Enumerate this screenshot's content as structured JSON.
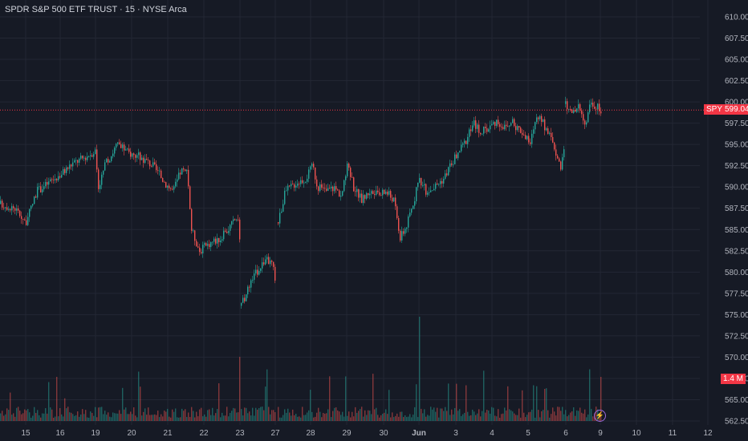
{
  "header": {
    "title": "SPDR S&P 500 ETF TRUST · 15 · NYSE Arca"
  },
  "price_axis": {
    "labels": [
      "610.00",
      "607.50",
      "605.00",
      "602.50",
      "600.00",
      "597.50",
      "595.00",
      "592.50",
      "590.00",
      "587.50",
      "585.00",
      "582.50",
      "580.00",
      "577.50",
      "575.00",
      "572.50",
      "570.00",
      "567.50",
      "565.00",
      "562.50"
    ]
  },
  "badges": {
    "symbol": "SPY",
    "last_price": "599.04",
    "volume": "1.4 M"
  },
  "time_axis": {
    "labels": [
      "15",
      "16",
      "19",
      "20",
      "21",
      "22",
      "23",
      "27",
      "28",
      "29",
      "30",
      "Jun",
      "3",
      "4",
      "5",
      "6",
      "9",
      "10",
      "11",
      "12"
    ]
  },
  "colors": {
    "up": "#26a69a",
    "down": "#ef5350",
    "background": "#161a25",
    "grid": "#232734",
    "accent": "#f23645"
  },
  "icons": {
    "replay": "lightning-bolt-icon"
  },
  "chart_data": {
    "type": "candlestick",
    "interval": "15 min",
    "last_price": 599.04,
    "ylim": [
      562.5,
      610
    ],
    "x_ticks": [
      "15",
      "16",
      "19",
      "20",
      "21",
      "22",
      "23",
      "27",
      "28",
      "29",
      "30",
      "Jun",
      "3",
      "4",
      "5",
      "6",
      "9",
      "10",
      "11",
      "12"
    ],
    "session_closes_approx": [
      {
        "date": "15",
        "close": 586.0
      },
      {
        "date": "16",
        "close": 591.5
      },
      {
        "date": "19",
        "close": 594.0
      },
      {
        "date": "20",
        "close": 593.5
      },
      {
        "date": "21",
        "close": 589.5
      },
      {
        "date": "22",
        "close": 585.0
      },
      {
        "date": "23",
        "close": 580.0
      },
      {
        "date": "27",
        "close": 591.0
      },
      {
        "date": "28",
        "close": 590.0
      },
      {
        "date": "29",
        "close": 589.0
      },
      {
        "date": "30",
        "close": 586.0
      },
      {
        "date": "Jun",
        "close": 590.5
      },
      {
        "date": "3",
        "close": 597.5
      },
      {
        "date": "4",
        "close": 597.0
      },
      {
        "date": "5",
        "close": 592.0
      },
      {
        "date": "6",
        "close": 599.0
      }
    ],
    "volume_spike": "1.4 M"
  }
}
